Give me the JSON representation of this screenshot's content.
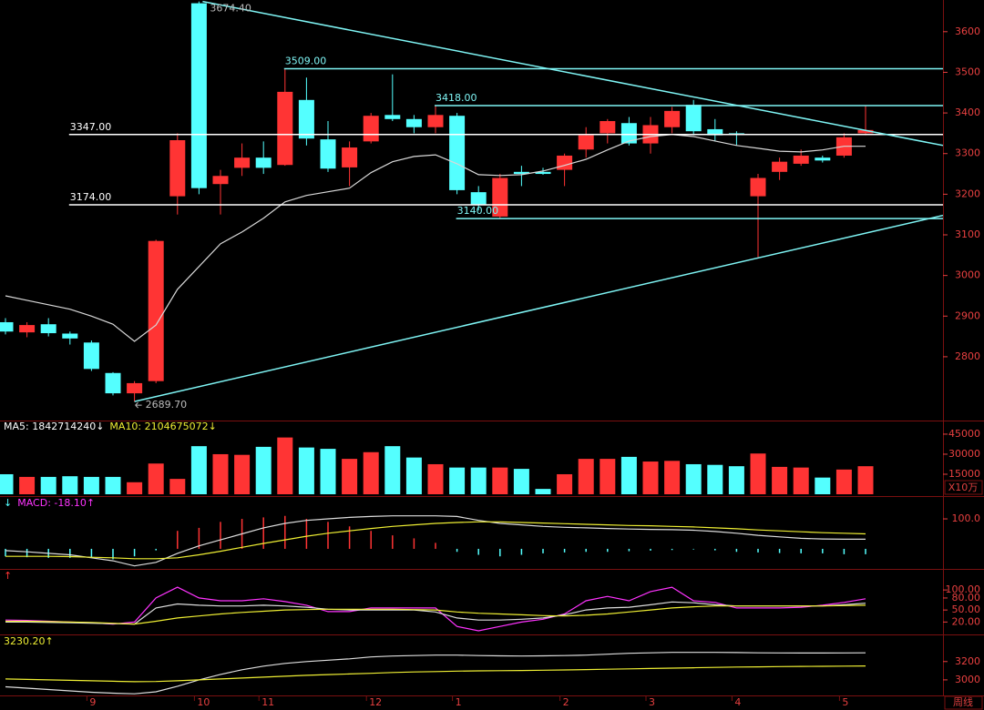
{
  "chart_data": [
    {
      "type": "candlestick",
      "categories": [
        null,
        null,
        null,
        null,
        "9",
        null,
        null,
        null,
        null,
        "10",
        null,
        null,
        "11",
        null,
        null,
        null,
        null,
        "12",
        null,
        null,
        null,
        "1",
        null,
        null,
        null,
        null,
        "2",
        null,
        null,
        null,
        "3",
        null,
        null,
        null,
        "4",
        null,
        null,
        null,
        null,
        "5",
        null
      ],
      "x_axis_label": "周线",
      "open": [
        2885,
        2860,
        2880,
        2857,
        2835,
        2760,
        2710,
        2740,
        3195,
        3670,
        3225,
        3265,
        3290,
        3272,
        3432,
        3335,
        3266,
        3330,
        3395,
        3385,
        3365,
        3393,
        3205,
        3145,
        3255,
        3255,
        3260,
        3310,
        3350,
        3375,
        3325,
        3365,
        3420,
        3360,
        3350,
        3195,
        3255,
        3275,
        3290,
        3295,
        3350
      ],
      "high": [
        2895,
        2885,
        2895,
        2862,
        2840,
        2762,
        2740,
        3088,
        3350,
        3674.4,
        3260,
        3325,
        3330,
        3509,
        3487,
        3380,
        3330,
        3400,
        3495,
        3395,
        3418,
        3400,
        3220,
        3250,
        3270,
        3265,
        3300,
        3365,
        3385,
        3390,
        3390,
        3415,
        3432,
        3385,
        3355,
        3250,
        3290,
        3310,
        3295,
        3350,
        3418
      ],
      "low": [
        2855,
        2848,
        2850,
        2830,
        2765,
        2705,
        2689.7,
        2735,
        3150,
        3200,
        3150,
        3245,
        3250,
        3270,
        3320,
        3255,
        3220,
        3325,
        3380,
        3350,
        3350,
        3200,
        3160,
        3140,
        3220,
        3248,
        3220,
        3290,
        3325,
        3320,
        3300,
        3350,
        3345,
        3330,
        3320,
        3045,
        3235,
        3270,
        3278,
        3290,
        3345
      ],
      "close": [
        2862,
        2878,
        2858,
        2845,
        2770,
        2710,
        2735,
        3085,
        3333,
        3215,
        3245,
        3290,
        3265,
        3452,
        3337,
        3263,
        3315,
        3393,
        3385,
        3365,
        3395,
        3210,
        3175,
        3240,
        3250,
        3250,
        3295,
        3345,
        3380,
        3325,
        3370,
        3405,
        3355,
        3345,
        3348,
        3240,
        3280,
        3295,
        3283,
        3340,
        3358
      ],
      "up_color": "#ff3434",
      "down_color": "#54ffff",
      "ylim": [
        2643,
        3678
      ],
      "yticks": [
        2800,
        2900,
        3000,
        3100,
        3200,
        3300,
        3400,
        3500,
        3600
      ],
      "ma": {
        "color": "#d8d8d8",
        "values": [
          2950,
          2939,
          2928,
          2917,
          2900,
          2880,
          2838,
          2878,
          2966,
          3022,
          3078,
          3107,
          3141,
          3181,
          3197,
          3206,
          3215,
          3253,
          3280,
          3293,
          3297,
          3275,
          3248,
          3246,
          3248,
          3257,
          3271,
          3286,
          3309,
          3331,
          3342,
          3347,
          3342,
          3331,
          3320,
          3313,
          3306,
          3304,
          3309,
          3318,
          3318
        ]
      },
      "levels": [
        {
          "value": 3509,
          "label": "3509.00",
          "color": "#7ff5f5"
        },
        {
          "value": 3418,
          "label": "3418.00",
          "color": "#7ff5f5"
        },
        {
          "value": 3347,
          "label": "3347.00",
          "color": "#ffffff"
        },
        {
          "value": 3174,
          "label": "3174.00",
          "color": "#ffffff"
        },
        {
          "value": 3140,
          "label": "3140.00",
          "color": "#7ff5f5"
        }
      ],
      "trend_lines": [
        {
          "from": 3674.4,
          "to": 3320,
          "color": "#7ff5f5"
        },
        {
          "from": 2689.7,
          "to": 3148,
          "color": "#7ff5f5"
        }
      ],
      "annotations": [
        {
          "value": 3674.4,
          "label": "3674.40"
        },
        {
          "value": 2689.7,
          "label": "2689.70"
        }
      ]
    },
    {
      "type": "bar",
      "values": [
        15000,
        13000,
        13000,
        13500,
        13000,
        13000,
        9000,
        23000,
        11500,
        36000,
        30000,
        29500,
        35500,
        42500,
        35000,
        34000,
        26500,
        31500,
        36000,
        27500,
        22500,
        20000,
        20000,
        20000,
        19000,
        4000,
        15000,
        26500,
        26500,
        28000,
        24500,
        25000,
        22500,
        22000,
        21000,
        30500,
        20500,
        20000,
        12500,
        18500,
        21000
      ],
      "up_color": "#ff3434",
      "down_color": "#54ffff",
      "ylim": [
        0,
        54500
      ],
      "yticks": [
        15000,
        30000,
        45000
      ],
      "unit": "X10万",
      "legend": [
        {
          "label": "MA5: 1842714240↓",
          "color": "#ffffff"
        },
        {
          "label": "MA10: 2104675072↓",
          "color": "#eeee33"
        }
      ]
    },
    {
      "type": "bar",
      "values": [
        -25,
        -28,
        -30,
        -30,
        -30,
        -35,
        -25,
        -5,
        60,
        70,
        90,
        100,
        105,
        110,
        100,
        90,
        75,
        60,
        45,
        35,
        20,
        -10,
        -20,
        -25,
        -20,
        -15,
        -12,
        -10,
        -10,
        -8,
        -6,
        -4,
        -2,
        -5,
        -10,
        -12,
        -14,
        -15,
        -15,
        -18,
        -18
      ],
      "up_color": "#ff3434",
      "down_color": "#54ffff",
      "ylim": [
        -67,
        170
      ],
      "yticks": [
        {
          "value": 100,
          "label": "100.0"
        }
      ],
      "series": [
        {
          "color": "#dddddd",
          "values": [
            -6,
            -10,
            -15,
            -20,
            -30,
            -40,
            -57,
            -45,
            -15,
            10,
            30,
            50,
            70,
            85,
            95,
            100,
            105,
            108,
            110,
            110,
            110,
            108,
            95,
            85,
            80,
            75,
            72,
            70,
            68,
            66,
            65,
            64,
            62,
            58,
            52,
            45,
            40,
            35,
            33,
            32,
            32
          ]
        },
        {
          "color": "#eeee33",
          "values": [
            -25,
            -25,
            -25,
            -26,
            -28,
            -30,
            -33,
            -33,
            -30,
            -20,
            -8,
            5,
            18,
            30,
            42,
            52,
            60,
            68,
            75,
            80,
            85,
            88,
            90,
            90,
            88,
            86,
            84,
            82,
            80,
            78,
            77,
            75,
            73,
            70,
            67,
            63,
            60,
            57,
            54,
            52,
            50
          ]
        }
      ],
      "legend": [
        {
          "label": "↓",
          "color": "#54ffff"
        },
        {
          "label": "MACD: -18.10↑",
          "color": "#ff33ff"
        }
      ]
    },
    {
      "type": "line",
      "ylim": [
        -11,
        148
      ],
      "yticks": [
        {
          "value": 100,
          "label": "100.00"
        },
        {
          "value": 80,
          "label": "80.00"
        },
        {
          "value": 50,
          "label": "50.00"
        },
        {
          "value": 20,
          "label": "20.00"
        }
      ],
      "series": [
        {
          "color": "#ff33ff",
          "values": [
            25,
            24,
            22,
            20,
            18,
            15,
            20,
            80,
            107,
            80,
            73,
            73,
            78,
            71,
            62,
            46,
            46,
            55,
            55,
            55,
            55,
            9,
            -2,
            9,
            20,
            27,
            40,
            73,
            84,
            73,
            96,
            107,
            73,
            69,
            55,
            55,
            55,
            57,
            62,
            69,
            78
          ]
        },
        {
          "color": "#dddddd",
          "values": [
            20,
            20,
            19,
            18,
            17,
            16,
            15,
            55,
            65,
            62,
            60,
            60,
            62,
            60,
            57,
            52,
            50,
            50,
            50,
            50,
            45,
            30,
            25,
            25,
            27,
            30,
            38,
            50,
            55,
            57,
            63,
            70,
            68,
            63,
            60,
            60,
            60,
            60,
            60,
            63,
            67
          ]
        },
        {
          "color": "#eeee33",
          "values": [
            22,
            22,
            21,
            20,
            19,
            17,
            15,
            22,
            30,
            35,
            40,
            44,
            47,
            50,
            51,
            52,
            52,
            52,
            52,
            51,
            50,
            45,
            42,
            40,
            38,
            36,
            35,
            37,
            40,
            45,
            50,
            55,
            58,
            60,
            60,
            60,
            60,
            60,
            60,
            61,
            62
          ]
        }
      ],
      "legend": [
        {
          "label": "↑",
          "color": "#ff3434"
        }
      ]
    },
    {
      "type": "line",
      "ylim": [
        2840,
        3476
      ],
      "yticks": [
        3200,
        3000
      ],
      "series": [
        {
          "color": "#dddddd",
          "values": [
            2924,
            2910,
            2895,
            2880,
            2865,
            2855,
            2848,
            2870,
            2930,
            3000,
            3060,
            3110,
            3150,
            3180,
            3200,
            3215,
            3230,
            3250,
            3260,
            3265,
            3270,
            3270,
            3265,
            3262,
            3260,
            3262,
            3265,
            3270,
            3280,
            3290,
            3295,
            3300,
            3300,
            3300,
            3298,
            3295,
            3294,
            3293,
            3293,
            3294,
            3295
          ]
        },
        {
          "color": "#eeee33",
          "values": [
            3010,
            3005,
            3000,
            2995,
            2990,
            2985,
            2980,
            2982,
            2990,
            3000,
            3010,
            3020,
            3030,
            3040,
            3050,
            3058,
            3065,
            3072,
            3080,
            3086,
            3090,
            3095,
            3098,
            3100,
            3102,
            3105,
            3108,
            3112,
            3116,
            3120,
            3124,
            3128,
            3132,
            3136,
            3140,
            3142,
            3145,
            3147,
            3148,
            3150,
            3152
          ]
        }
      ],
      "legend": [
        {
          "label": "3230.20↑",
          "color": "#eeee33"
        }
      ]
    }
  ]
}
